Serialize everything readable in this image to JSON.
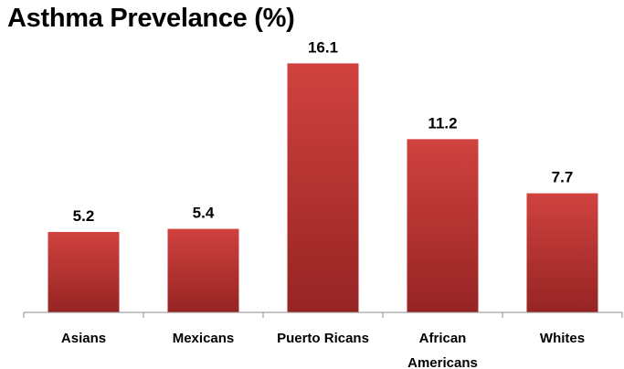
{
  "chart_data": {
    "type": "bar",
    "title": "Asthma Prevelance (%)",
    "categories": [
      [
        "Asians"
      ],
      [
        "Mexicans"
      ],
      [
        "Puerto Ricans"
      ],
      [
        "African",
        "Americans"
      ],
      [
        "Whites"
      ]
    ],
    "values": [
      5.2,
      5.4,
      16.1,
      11.2,
      7.7
    ],
    "value_labels": [
      "5.2",
      "5.4",
      "16.1",
      "11.2",
      "7.7"
    ],
    "ylim": [
      0,
      17.6
    ],
    "grid": false,
    "legend": "none",
    "colors": {
      "bar_top": "#d0423f",
      "bar_bottom": "#962423",
      "axis": "#8c8c8c"
    }
  }
}
